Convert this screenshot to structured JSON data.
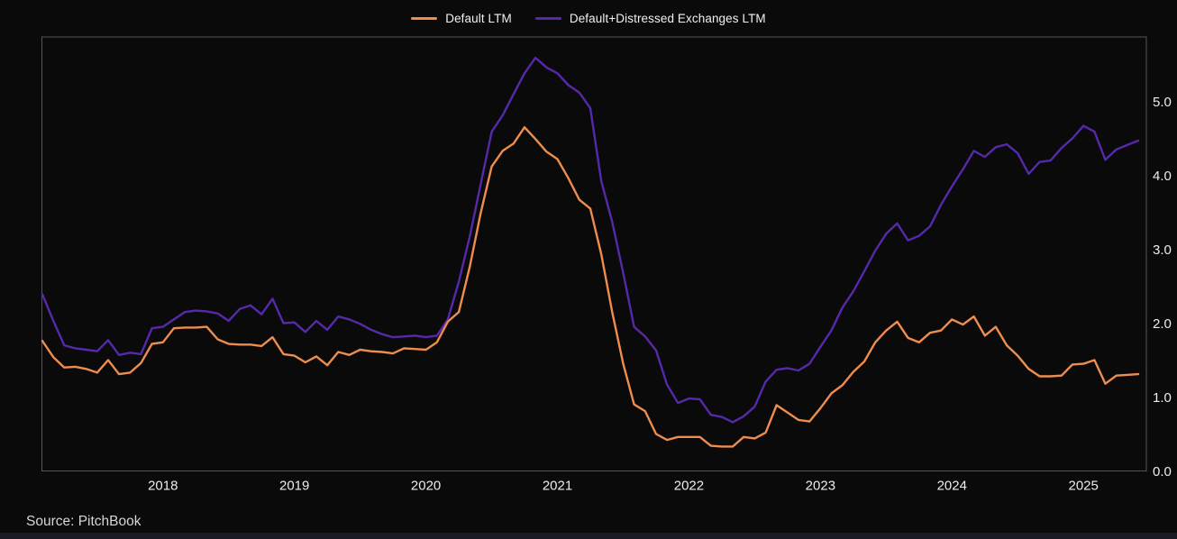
{
  "panel": {
    "source_label": "Source: PitchBook"
  },
  "chart_data": {
    "type": "line",
    "title": "",
    "x_frequency": "monthly",
    "x_start": "2017-02",
    "x_end": "2025-06",
    "x_tick_labels": [
      "2018",
      "2019",
      "2020",
      "2021",
      "2022",
      "2023",
      "2024",
      "2025"
    ],
    "y_tick_values": [
      0,
      1,
      2,
      3,
      4,
      5
    ],
    "y_tick_labels": [
      "0.0",
      "1.0",
      "2.0",
      "3.0",
      "4.0",
      "5.0"
    ],
    "ylim": [
      0,
      5.9
    ],
    "grid": false,
    "axis_side": "right",
    "legend_position": "top-center",
    "colors": {
      "background": "#0a0a0b",
      "plot_border": "#55555c",
      "tick_text": "#ededef",
      "footer_bar": "#1a1c25",
      "source_text": "#d6d6d6"
    },
    "series": [
      {
        "name": "Default LTM",
        "color": "#ee8d4c",
        "values": [
          1.76,
          1.54,
          1.4,
          1.41,
          1.38,
          1.33,
          1.5,
          1.31,
          1.33,
          1.46,
          1.72,
          1.74,
          1.93,
          1.94,
          1.94,
          1.95,
          1.78,
          1.72,
          1.71,
          1.71,
          1.69,
          1.81,
          1.58,
          1.56,
          1.47,
          1.55,
          1.43,
          1.61,
          1.57,
          1.64,
          1.62,
          1.61,
          1.59,
          1.66,
          1.65,
          1.64,
          1.74,
          2.02,
          2.15,
          2.76,
          3.49,
          4.12,
          4.33,
          4.43,
          4.65,
          4.49,
          4.32,
          4.22,
          3.96,
          3.67,
          3.55,
          2.93,
          2.15,
          1.45,
          0.9,
          0.81,
          0.5,
          0.42,
          0.46,
          0.46,
          0.46,
          0.34,
          0.33,
          0.33,
          0.46,
          0.44,
          0.52,
          0.89,
          0.79,
          0.69,
          0.67,
          0.85,
          1.05,
          1.16,
          1.34,
          1.48,
          1.74,
          1.9,
          2.02,
          1.8,
          1.74,
          1.87,
          1.9,
          2.05,
          1.98,
          2.09,
          1.83,
          1.95,
          1.7,
          1.56,
          1.38,
          1.28,
          1.28,
          1.29,
          1.44,
          1.45,
          1.5,
          1.18,
          1.29,
          1.3,
          1.31
        ]
      },
      {
        "name": "Default+Distressed Exchanges LTM",
        "color": "#5629ab",
        "values": [
          2.39,
          2.03,
          1.7,
          1.66,
          1.64,
          1.62,
          1.77,
          1.57,
          1.6,
          1.58,
          1.93,
          1.95,
          2.05,
          2.15,
          2.17,
          2.16,
          2.13,
          2.03,
          2.19,
          2.24,
          2.12,
          2.33,
          2.0,
          2.01,
          1.88,
          2.03,
          1.91,
          2.09,
          2.05,
          1.99,
          1.91,
          1.85,
          1.81,
          1.82,
          1.83,
          1.81,
          1.83,
          2.05,
          2.56,
          3.17,
          3.88,
          4.59,
          4.81,
          5.1,
          5.38,
          5.59,
          5.46,
          5.38,
          5.22,
          5.12,
          4.91,
          3.92,
          3.37,
          2.68,
          1.95,
          1.82,
          1.63,
          1.17,
          0.92,
          0.98,
          0.97,
          0.76,
          0.73,
          0.66,
          0.74,
          0.87,
          1.21,
          1.37,
          1.39,
          1.36,
          1.45,
          1.68,
          1.9,
          2.21,
          2.43,
          2.7,
          2.98,
          3.21,
          3.35,
          3.12,
          3.18,
          3.31,
          3.6,
          3.85,
          4.08,
          4.33,
          4.25,
          4.38,
          4.42,
          4.3,
          4.02,
          4.18,
          4.2,
          4.37,
          4.5,
          4.67,
          4.59,
          4.21,
          4.35,
          4.41,
          4.47
        ]
      }
    ]
  }
}
